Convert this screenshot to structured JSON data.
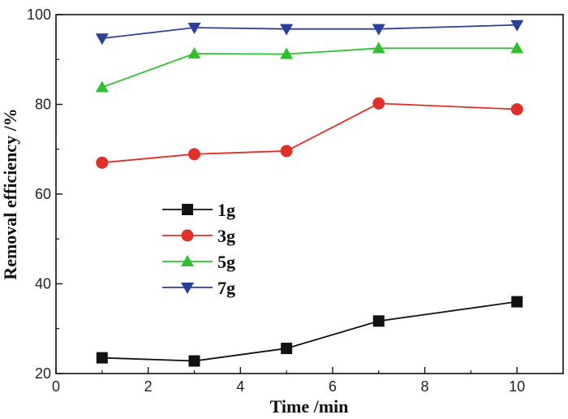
{
  "chart_data": {
    "type": "line",
    "title": "",
    "xlabel": "Time /min",
    "ylabel": "Removal efficiency /%",
    "xlim": [
      0,
      11
    ],
    "ylim": [
      20,
      100
    ],
    "xticks": [
      0,
      2,
      4,
      6,
      8,
      10
    ],
    "yticks": [
      20,
      40,
      60,
      80,
      100
    ],
    "x": [
      1,
      3,
      5,
      7,
      10
    ],
    "grid": false,
    "legend_position": "center-left",
    "series": [
      {
        "name": "1g",
        "marker": "square",
        "color": "#111111",
        "values": [
          23.5,
          22.8,
          25.6,
          31.7,
          36.0
        ]
      },
      {
        "name": "3g",
        "marker": "circle",
        "color": "#e0302a",
        "values": [
          67.0,
          68.9,
          69.6,
          80.2,
          78.9
        ]
      },
      {
        "name": "5g",
        "marker": "triangle-up",
        "color": "#2fbf2f",
        "values": [
          83.8,
          91.3,
          91.2,
          92.5,
          92.5
        ]
      },
      {
        "name": "7g",
        "marker": "triangle-down",
        "color": "#2a3f9a",
        "values": [
          94.7,
          97.1,
          96.8,
          96.8,
          97.7
        ]
      }
    ]
  }
}
